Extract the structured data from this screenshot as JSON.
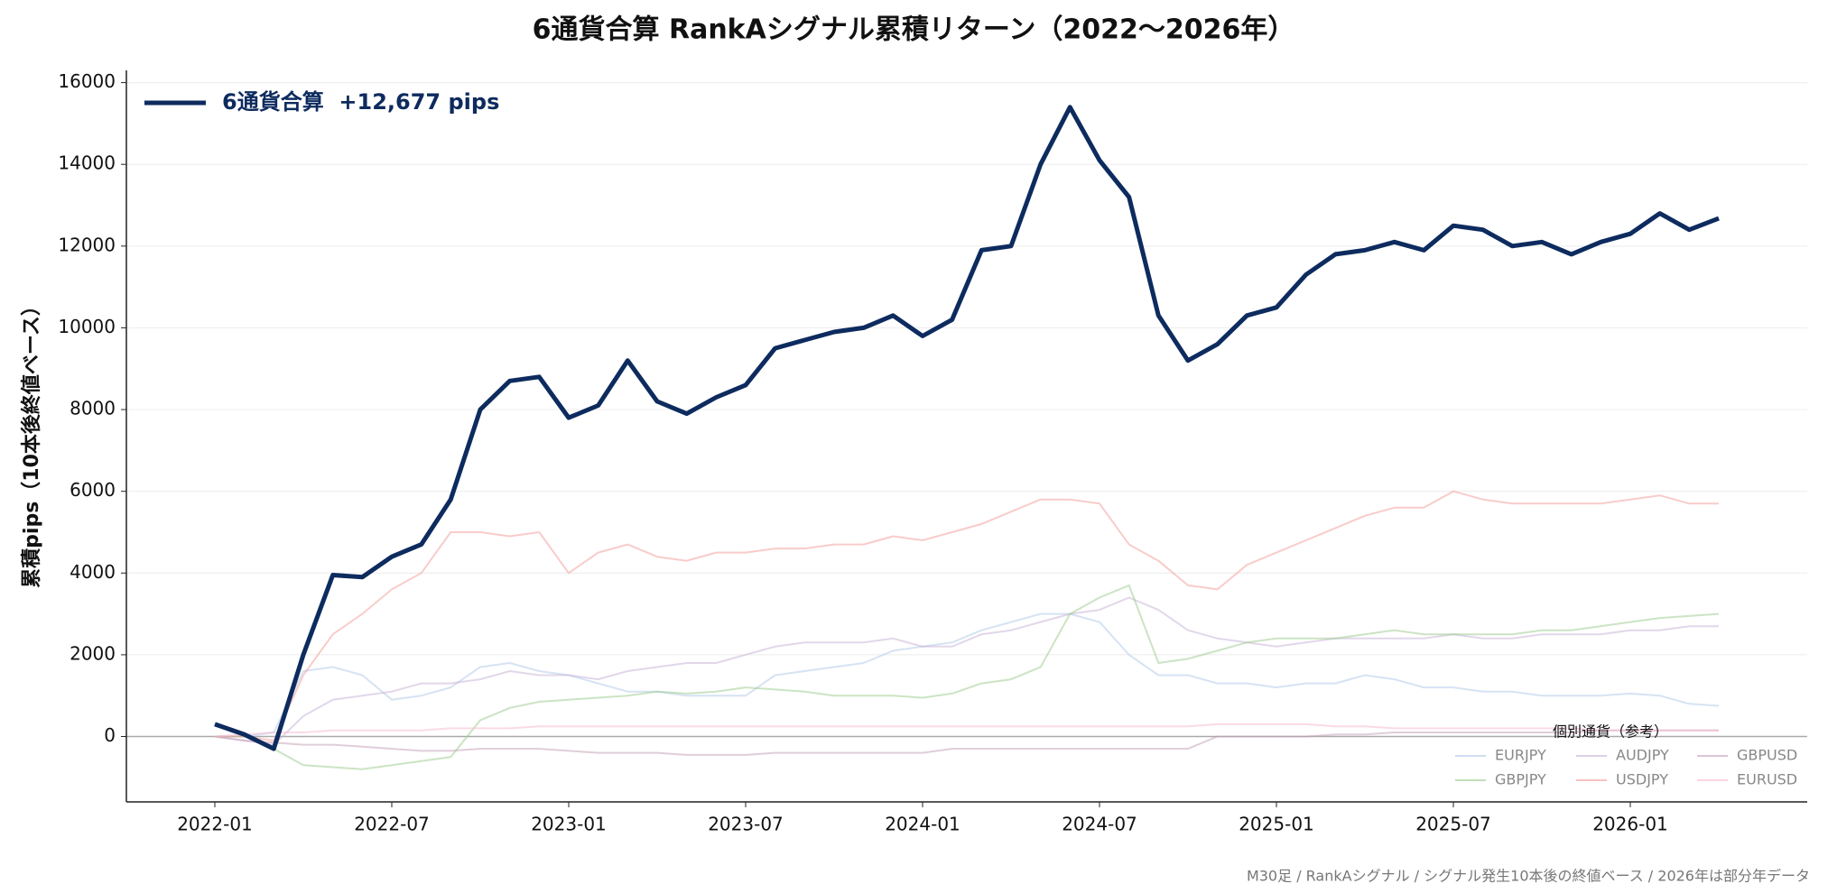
{
  "chart_data": {
    "type": "line",
    "title": "6通貨合算 RankAシグナル累積リターン（2022〜2026年）",
    "y_label": "累積pips（10本後終値ベース）",
    "note": "M30足  /  RankAシグナル  /  シグナル発生10本後の終値ベース  /  2026年は部分年データ",
    "legend": "upper left",
    "legend_title": "個別通貨（参考）",
    "grid": true,
    "xlim": [
      "2021-10",
      "2026-07"
    ],
    "xticks": [
      "2022-01",
      "2022-07",
      "2023-01",
      "2023-07",
      "2024-01",
      "2024-07",
      "2025-01",
      "2025-07",
      "2026-01"
    ],
    "ylim": [
      -1600,
      16300
    ],
    "yticks": [
      0,
      2000,
      4000,
      6000,
      8000,
      10000,
      12000,
      14000,
      16000
    ],
    "x": [
      "2022-01",
      "2022-02",
      "2022-03",
      "2022-04",
      "2022-05",
      "2022-06",
      "2022-07",
      "2022-08",
      "2022-09",
      "2022-10",
      "2022-11",
      "2022-12",
      "2023-01",
      "2023-02",
      "2023-03",
      "2023-04",
      "2023-05",
      "2023-06",
      "2023-07",
      "2023-08",
      "2023-09",
      "2023-10",
      "2023-11",
      "2023-12",
      "2024-01",
      "2024-02",
      "2024-03",
      "2024-04",
      "2024-05",
      "2024-06",
      "2024-07",
      "2024-08",
      "2024-09",
      "2024-10",
      "2024-11",
      "2024-12",
      "2025-01",
      "2025-02",
      "2025-03",
      "2025-04",
      "2025-05",
      "2025-06",
      "2025-07",
      "2025-08",
      "2025-09",
      "2025-10",
      "2025-11",
      "2025-12",
      "2026-01",
      "2026-02",
      "2026-03",
      "2026-04"
    ],
    "series": [
      {
        "name": "6通貨合算  +12,677 pips",
        "color": "#0d2b5e",
        "values": [
          300,
          50,
          -300,
          2000,
          3950,
          3900,
          4400,
          4700,
          5800,
          8000,
          8700,
          8800,
          7800,
          8100,
          9200,
          8200,
          7900,
          8300,
          8600,
          9500,
          9700,
          9900,
          10000,
          10300,
          9800,
          10200,
          11900,
          12000,
          14000,
          15400,
          14100,
          13200,
          10300,
          9200,
          9600,
          10300,
          10500,
          11300,
          11800,
          11900,
          12100,
          11900,
          12500,
          12400,
          12000,
          12100,
          11800,
          12100,
          12300,
          12800,
          12400,
          12677
        ]
      },
      {
        "name": "EURJPY",
        "color": "#aec7e8",
        "values": [
          0,
          0,
          100,
          1600,
          1700,
          1500,
          900,
          1000,
          1200,
          1700,
          1800,
          1600,
          1500,
          1300,
          1100,
          1100,
          1000,
          1000,
          1000,
          1500,
          1600,
          1700,
          1800,
          2100,
          2200,
          2300,
          2600,
          2800,
          3000,
          3000,
          2800,
          2000,
          1500,
          1500,
          1300,
          1300,
          1200,
          1300,
          1300,
          1500,
          1400,
          1200,
          1200,
          1100,
          1100,
          1000,
          1000,
          1000,
          1050,
          1000,
          800,
          750
        ]
      },
      {
        "name": "AUDJPY",
        "color": "#c5b0d5",
        "values": [
          0,
          -100,
          -200,
          500,
          900,
          1000,
          1100,
          1300,
          1300,
          1400,
          1600,
          1500,
          1500,
          1400,
          1600,
          1700,
          1800,
          1800,
          2000,
          2200,
          2300,
          2300,
          2300,
          2400,
          2200,
          2200,
          2500,
          2600,
          2800,
          3000,
          3100,
          3400,
          3100,
          2600,
          2400,
          2300,
          2200,
          2300,
          2400,
          2400,
          2400,
          2400,
          2500,
          2400,
          2400,
          2500,
          2500,
          2500,
          2600,
          2600,
          2700,
          2700
        ]
      },
      {
        "name": "GBPUSD",
        "color": "#c49cb4",
        "values": [
          0,
          -100,
          -150,
          -200,
          -200,
          -250,
          -300,
          -350,
          -350,
          -300,
          -300,
          -300,
          -350,
          -400,
          -400,
          -400,
          -450,
          -450,
          -450,
          -400,
          -400,
          -400,
          -400,
          -400,
          -400,
          -300,
          -300,
          -300,
          -300,
          -300,
          -300,
          -300,
          -300,
          -300,
          0,
          0,
          0,
          0,
          50,
          50,
          100,
          100,
          100,
          100,
          100,
          100,
          100,
          150,
          150,
          150,
          150,
          150
        ]
      },
      {
        "name": "GBPJPY",
        "color": "#98c98a",
        "values": [
          0,
          0,
          -300,
          -700,
          -750,
          -800,
          -700,
          -600,
          -500,
          400,
          700,
          850,
          900,
          950,
          1000,
          1100,
          1050,
          1100,
          1200,
          1150,
          1100,
          1000,
          1000,
          1000,
          950,
          1050,
          1300,
          1400,
          1700,
          3000,
          3400,
          3700,
          1800,
          1900,
          2100,
          2300,
          2400,
          2400,
          2400,
          2500,
          2600,
          2500,
          2500,
          2500,
          2500,
          2600,
          2600,
          2700,
          2800,
          2900,
          2950,
          3000
        ]
      },
      {
        "name": "USDJPY",
        "color": "#f19a96",
        "values": [
          0,
          0,
          -100,
          1500,
          2500,
          3000,
          3600,
          4000,
          5000,
          5000,
          4900,
          5000,
          4000,
          4500,
          4700,
          4400,
          4300,
          4500,
          4500,
          4600,
          4600,
          4700,
          4700,
          4900,
          4800,
          5000,
          5200,
          5500,
          5800,
          5800,
          5700,
          4700,
          4300,
          3700,
          3600,
          4200,
          4500,
          4800,
          5100,
          5400,
          5600,
          5600,
          6000,
          5800,
          5700,
          5700,
          5700,
          5700,
          5800,
          5900,
          5700,
          5700
        ]
      },
      {
        "name": "EURUSD",
        "color": "#f7b6d2",
        "values": [
          0,
          50,
          100,
          100,
          150,
          150,
          150,
          150,
          200,
          200,
          200,
          250,
          250,
          250,
          250,
          250,
          250,
          250,
          250,
          250,
          250,
          250,
          250,
          250,
          250,
          250,
          250,
          250,
          250,
          250,
          250,
          250,
          250,
          250,
          300,
          300,
          300,
          300,
          250,
          250,
          200,
          200,
          200,
          200,
          200,
          200,
          200,
          150,
          150,
          150,
          150,
          150
        ]
      }
    ]
  }
}
